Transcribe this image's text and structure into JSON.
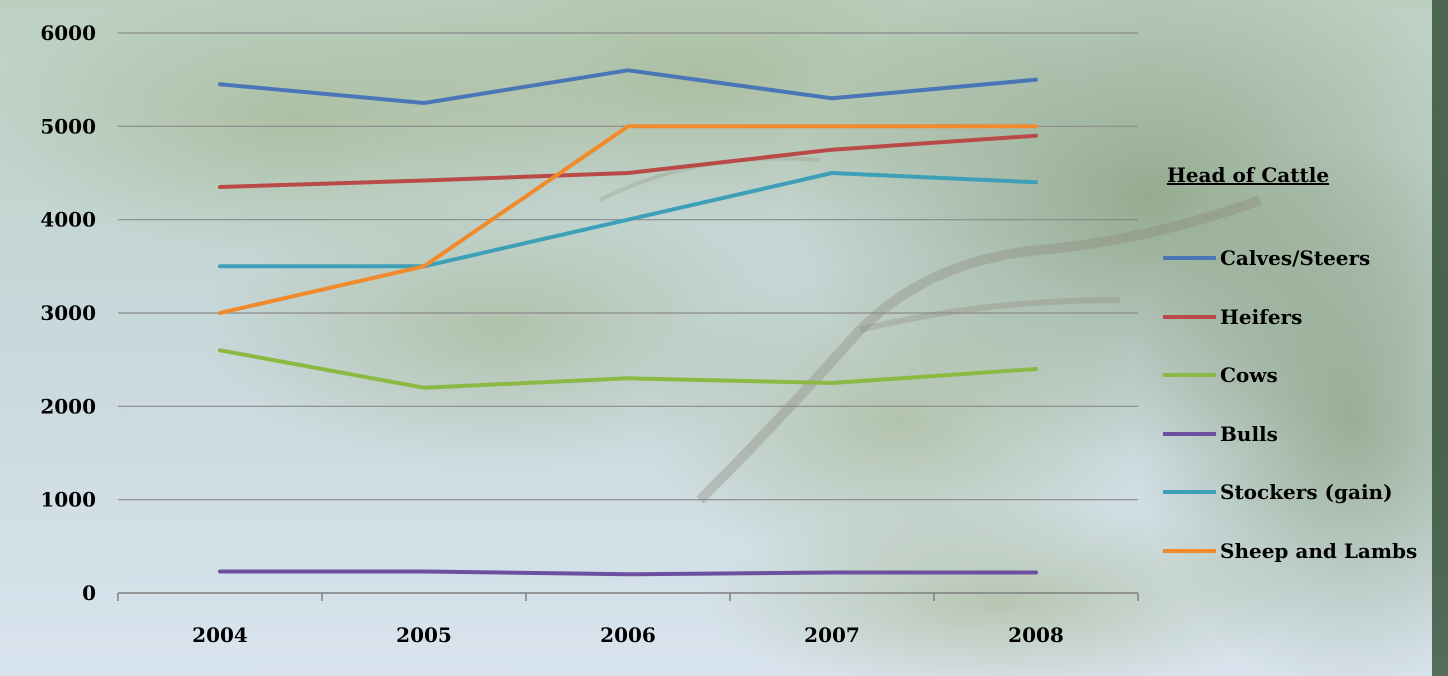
{
  "chart_data": {
    "type": "line",
    "categories": [
      "2004",
      "2005",
      "2006",
      "2007",
      "2008"
    ],
    "ylim": [
      0,
      6000
    ],
    "yticks": [
      0,
      1000,
      2000,
      3000,
      4000,
      5000,
      6000
    ],
    "ytick_labels": [
      "0",
      "1000",
      "2000",
      "3000",
      "4000",
      "5000",
      "6000"
    ],
    "grid": true,
    "legend_title": "Head of Cattle",
    "legend_position": "right",
    "series": [
      {
        "name": "Calves/Steers",
        "color": "#4a76b8",
        "values": [
          5450,
          5250,
          5600,
          5300,
          5500
        ]
      },
      {
        "name": "Heifers",
        "color": "#b94a48",
        "values": [
          4350,
          4420,
          4500,
          4750,
          4900
        ]
      },
      {
        "name": "Cows",
        "color": "#8cb944",
        "values": [
          2600,
          2200,
          2300,
          2250,
          2400
        ]
      },
      {
        "name": "Bulls",
        "color": "#6e4f9e",
        "values": [
          230,
          230,
          200,
          220,
          220
        ]
      },
      {
        "name": "Stockers (gain)",
        "color": "#3ea0b8",
        "values": [
          3500,
          3500,
          4000,
          4500,
          4400
        ]
      },
      {
        "name": "Sheep and Lambs",
        "color": "#f08a2c",
        "values": [
          3000,
          3500,
          5000,
          5000,
          5000
        ]
      }
    ]
  }
}
